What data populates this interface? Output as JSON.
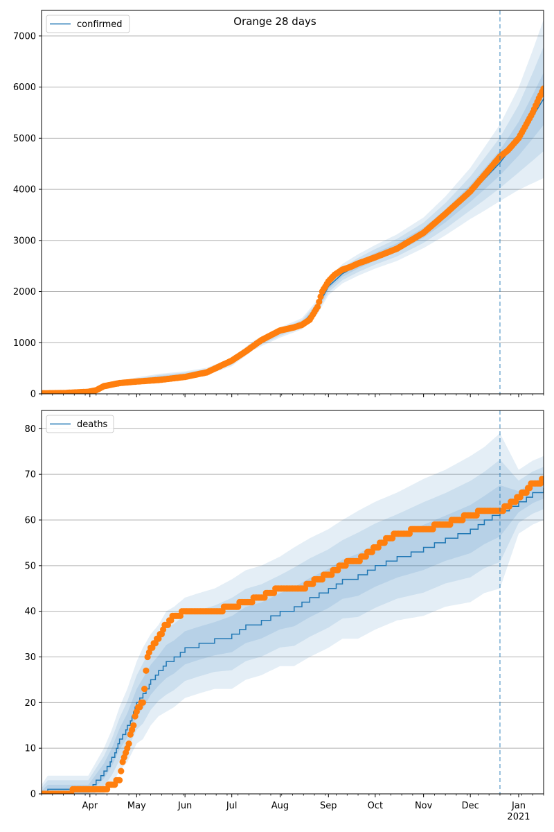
{
  "title": "Orange 28 days",
  "chart_data": [
    {
      "type": "line",
      "ylim": [
        0,
        7500
      ],
      "yticks": [
        0,
        1000,
        2000,
        3000,
        4000,
        5000,
        6000,
        7000
      ],
      "grid": "y",
      "legend": {
        "position": "top-left",
        "label": "confirmed"
      },
      "forecast_start": "2020-12-20",
      "x_range": [
        "2020-03-01",
        "2021-01-17"
      ],
      "month_ticks": [
        {
          "date": "2020-04-01",
          "label": "Apr"
        },
        {
          "date": "2020-05-01",
          "label": "May"
        },
        {
          "date": "2020-06-01",
          "label": "Jun"
        },
        {
          "date": "2020-07-01",
          "label": "Jul"
        },
        {
          "date": "2020-08-01",
          "label": "Aug"
        },
        {
          "date": "2020-09-01",
          "label": "Sep"
        },
        {
          "date": "2020-10-01",
          "label": "Oct"
        },
        {
          "date": "2020-11-01",
          "label": "Nov"
        },
        {
          "date": "2020-12-01",
          "label": "Dec"
        },
        {
          "date": "2021-01-01",
          "label": "Jan",
          "sublabel": "2021"
        }
      ],
      "series": [
        {
          "name": "confirmed",
          "kind": "model-line",
          "x": [
            "2020-03-01",
            "2020-03-20",
            "2020-04-05",
            "2020-04-15",
            "2020-05-01",
            "2020-05-15",
            "2020-06-01",
            "2020-06-15",
            "2020-07-01",
            "2020-07-15",
            "2020-08-01",
            "2020-08-15",
            "2020-08-25",
            "2020-09-01",
            "2020-09-10",
            "2020-09-20",
            "2020-10-01",
            "2020-10-15",
            "2020-11-01",
            "2020-11-15",
            "2020-12-01",
            "2020-12-10",
            "2020-12-20",
            "2021-01-01",
            "2021-01-10",
            "2021-01-17"
          ],
          "y": [
            10,
            20,
            60,
            170,
            260,
            320,
            370,
            440,
            620,
            950,
            1200,
            1370,
            1700,
            2100,
            2350,
            2520,
            2680,
            2860,
            3150,
            3480,
            3920,
            4200,
            4520,
            4990,
            5420,
            5770
          ],
          "band_half_width": [
            5,
            8,
            20,
            40,
            60,
            70,
            70,
            70,
            80,
            90,
            100,
            110,
            140,
            170,
            190,
            210,
            230,
            260,
            300,
            380,
            500,
            620,
            750,
            1000,
            1300,
            1550
          ]
        },
        {
          "name": "confirmed-observed",
          "kind": "observed-points",
          "x": [
            "2020-03-01",
            "2020-03-15",
            "2020-03-31",
            "2020-04-05",
            "2020-04-10",
            "2020-04-15",
            "2020-04-20",
            "2020-05-01",
            "2020-05-15",
            "2020-06-01",
            "2020-06-15",
            "2020-07-01",
            "2020-07-10",
            "2020-07-20",
            "2020-08-01",
            "2020-08-10",
            "2020-08-15",
            "2020-08-20",
            "2020-08-25",
            "2020-08-28",
            "2020-09-01",
            "2020-09-05",
            "2020-09-10",
            "2020-09-15",
            "2020-09-20",
            "2020-10-01",
            "2020-10-15",
            "2020-11-01",
            "2020-11-15",
            "2020-12-01",
            "2020-12-10",
            "2020-12-20",
            "2020-12-25",
            "2021-01-01",
            "2021-01-05",
            "2021-01-10",
            "2021-01-14",
            "2021-01-17"
          ],
          "y": [
            10,
            15,
            40,
            70,
            150,
            180,
            210,
            240,
            270,
            330,
            420,
            650,
            830,
            1050,
            1240,
            1300,
            1350,
            1450,
            1700,
            2000,
            2200,
            2330,
            2430,
            2480,
            2550,
            2670,
            2840,
            3150,
            3520,
            3960,
            4280,
            4640,
            4760,
            5000,
            5220,
            5500,
            5780,
            5970
          ]
        }
      ]
    },
    {
      "type": "line",
      "ylim": [
        0,
        84
      ],
      "yticks": [
        0,
        10,
        20,
        30,
        40,
        50,
        60,
        70,
        80
      ],
      "grid": "y",
      "legend": {
        "position": "top-left",
        "label": "deaths"
      },
      "forecast_start": "2020-12-20",
      "x_range": [
        "2020-03-01",
        "2021-01-17"
      ],
      "month_ticks": [
        {
          "date": "2020-04-01",
          "label": "Apr"
        },
        {
          "date": "2020-05-01",
          "label": "May"
        },
        {
          "date": "2020-06-01",
          "label": "Jun"
        },
        {
          "date": "2020-07-01",
          "label": "Jul"
        },
        {
          "date": "2020-08-01",
          "label": "Aug"
        },
        {
          "date": "2020-09-01",
          "label": "Sep"
        },
        {
          "date": "2020-10-01",
          "label": "Oct"
        },
        {
          "date": "2020-11-01",
          "label": "Nov"
        },
        {
          "date": "2020-12-01",
          "label": "Dec"
        },
        {
          "date": "2021-01-01",
          "label": "Jan",
          "sublabel": "2021"
        }
      ],
      "series": [
        {
          "name": "deaths",
          "kind": "model-line",
          "x": [
            "2020-03-01",
            "2020-03-05",
            "2020-03-31",
            "2020-04-05",
            "2020-04-10",
            "2020-04-15",
            "2020-04-20",
            "2020-04-25",
            "2020-05-01",
            "2020-05-05",
            "2020-05-10",
            "2020-05-15",
            "2020-05-20",
            "2020-05-25",
            "2020-06-01",
            "2020-06-10",
            "2020-06-20",
            "2020-07-01",
            "2020-07-10",
            "2020-07-20",
            "2020-08-01",
            "2020-08-10",
            "2020-08-20",
            "2020-09-01",
            "2020-09-10",
            "2020-09-20",
            "2020-10-01",
            "2020-10-15",
            "2020-11-01",
            "2020-11-15",
            "2020-12-01",
            "2020-12-10",
            "2020-12-20",
            "2021-01-01",
            "2021-01-10",
            "2021-01-17"
          ],
          "y": [
            0,
            1,
            1,
            3,
            5,
            8,
            12,
            15,
            20,
            22,
            25,
            27,
            29,
            30,
            32,
            33,
            34,
            35,
            37,
            38,
            40,
            41,
            43,
            45,
            47,
            48,
            50,
            52,
            54,
            56,
            58,
            60,
            62,
            64,
            66,
            67
          ],
          "band_half_width": [
            2,
            3,
            3,
            4,
            5,
            6,
            7,
            8,
            9,
            10,
            10,
            10,
            11,
            11,
            11,
            11,
            11,
            12,
            12,
            12,
            12,
            13,
            13,
            13,
            13,
            14,
            14,
            14,
            15,
            15,
            16,
            16,
            17,
            7,
            7,
            7
          ]
        },
        {
          "name": "deaths-observed",
          "kind": "observed-points",
          "x": [
            "2020-03-01",
            "2020-04-10",
            "2020-04-15",
            "2020-04-20",
            "2020-04-22",
            "2020-04-25",
            "2020-04-28",
            "2020-05-01",
            "2020-05-05",
            "2020-05-08",
            "2020-05-12",
            "2020-05-15",
            "2020-05-18",
            "2020-05-20",
            "2020-05-25",
            "2020-05-28",
            "2020-06-01",
            "2020-06-10",
            "2020-06-20",
            "2020-07-01",
            "2020-07-10",
            "2020-07-20",
            "2020-08-01",
            "2020-08-10",
            "2020-08-15",
            "2020-08-20",
            "2020-08-25",
            "2020-09-01",
            "2020-09-10",
            "2020-09-15",
            "2020-09-20",
            "2020-10-01",
            "2020-10-15",
            "2020-11-01",
            "2020-11-15",
            "2020-12-01",
            "2020-12-10",
            "2020-12-20",
            "2020-12-25",
            "2021-01-01",
            "2021-01-05",
            "2021-01-10",
            "2021-01-14",
            "2021-01-17"
          ],
          "y": [
            0,
            1,
            2,
            3,
            7,
            10,
            14,
            18,
            20,
            30,
            33,
            34,
            36,
            37,
            39,
            39,
            40,
            40,
            40,
            41,
            42,
            43,
            45,
            45,
            45,
            46,
            47,
            48,
            50,
            51,
            51,
            54,
            57,
            58,
            59,
            61,
            62,
            62,
            63,
            65,
            66,
            68,
            68,
            69
          ]
        }
      ]
    }
  ],
  "colors": {
    "line": "#1f77b4",
    "band": "#1f77b4",
    "points": "#ff7f0e",
    "grid": "#b0b0b0",
    "forecast_line": "#1f77b4"
  }
}
